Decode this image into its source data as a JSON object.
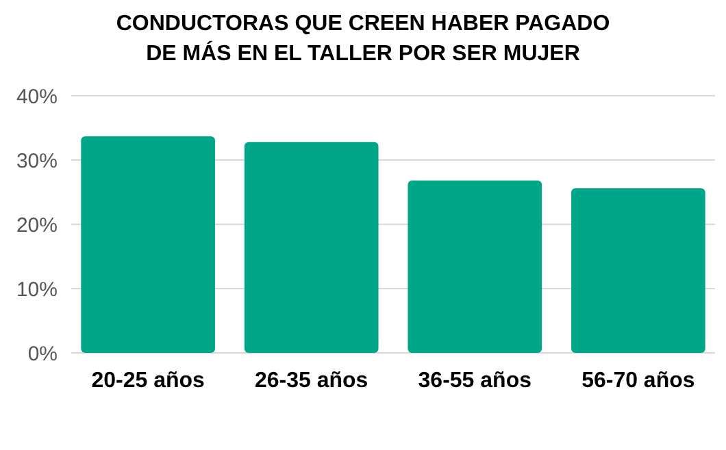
{
  "chart_data": {
    "type": "bar",
    "title": "CONDUCTORAS QUE CREEN HABER PAGADO\nDE MÁS EN EL TALLER POR SER MUJER",
    "categories": [
      "20-25 años",
      "26-35 años",
      "36-55 años",
      "56-70 años"
    ],
    "values": [
      33.7,
      32.8,
      26.8,
      25.6
    ],
    "color": "#00a688",
    "ylim": [
      0,
      40
    ],
    "yticks": [
      {
        "value": 0,
        "label": "0%"
      },
      {
        "value": 10,
        "label": "10%"
      },
      {
        "value": 20,
        "label": "20%"
      },
      {
        "value": 30,
        "label": "30%"
      },
      {
        "value": 40,
        "label": "40%"
      }
    ],
    "grid": "y"
  }
}
